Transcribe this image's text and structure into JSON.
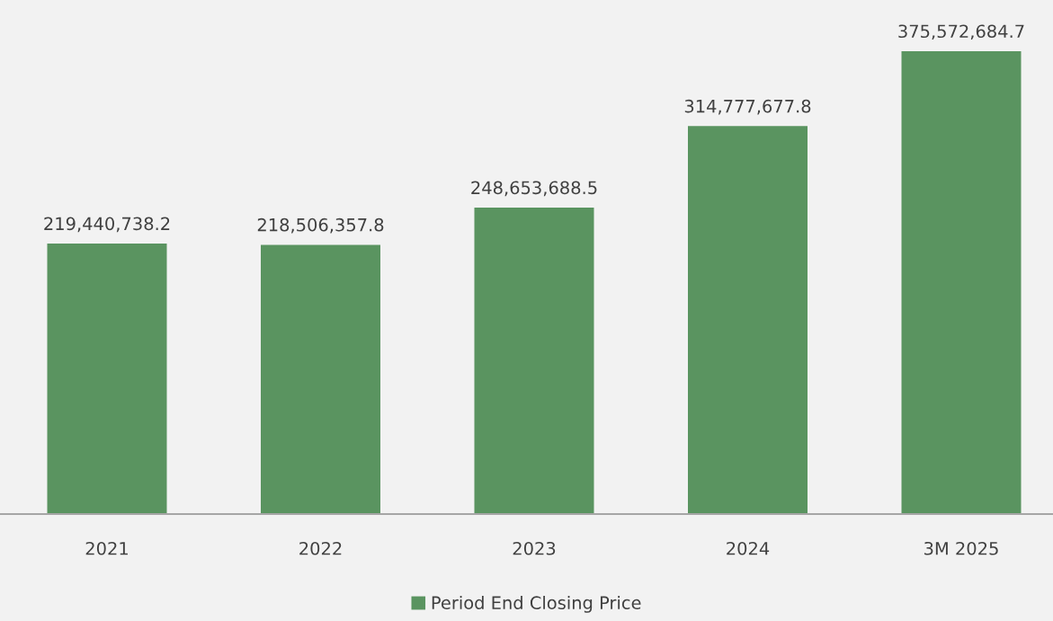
{
  "chart_data": {
    "type": "bar",
    "categories": [
      "2021",
      "2022",
      "2023",
      "2024",
      "3M 2025"
    ],
    "series": [
      {
        "name": "Period End Closing Price",
        "color": "#5a9460",
        "values": [
          219440738.2,
          218506357.8,
          248653688.5,
          314777677.8,
          375572684.7
        ],
        "value_labels": [
          "219,440,738.2",
          "218,506,357.8",
          "248,653,688.5",
          "314,777,677.8",
          "375,572,684.7"
        ]
      }
    ],
    "legend": "bottom"
  }
}
